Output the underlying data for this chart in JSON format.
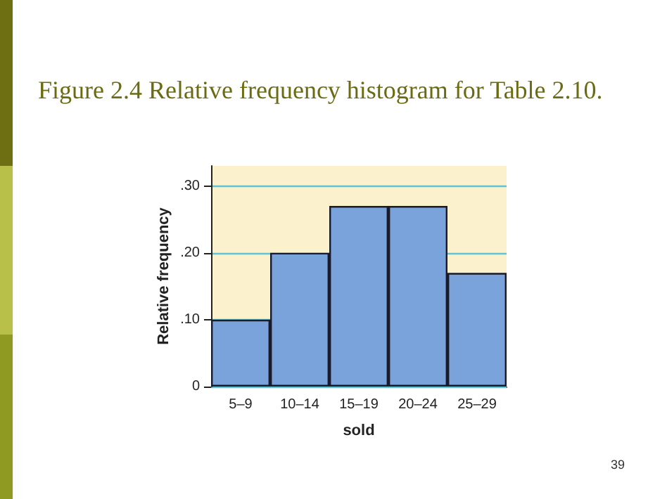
{
  "chart_data": {
    "type": "bar",
    "title": "Figure 2.4 Relative frequency histogram for Table 2.10.",
    "xlabel": "sold",
    "ylabel": "Relative frequency",
    "categories": [
      "5–9",
      "10–14",
      "15–19",
      "20–24",
      "25–29"
    ],
    "values": [
      0.1,
      0.2,
      0.27,
      0.27,
      0.17
    ],
    "color": "#7ba3db",
    "ylim": [
      0,
      0.33
    ],
    "yticks": [
      0,
      {
        "value": 0.1,
        "label": ".10"
      },
      {
        "value": 0.2,
        "label": ".20"
      },
      {
        "value": 0.3,
        "label": ".30"
      }
    ],
    "grid": "y",
    "bands": [
      {
        "axis": "y",
        "from": 0,
        "to": 0.33,
        "color": "#fbf1cc"
      }
    ],
    "annotations": [
      "39"
    ]
  }
}
